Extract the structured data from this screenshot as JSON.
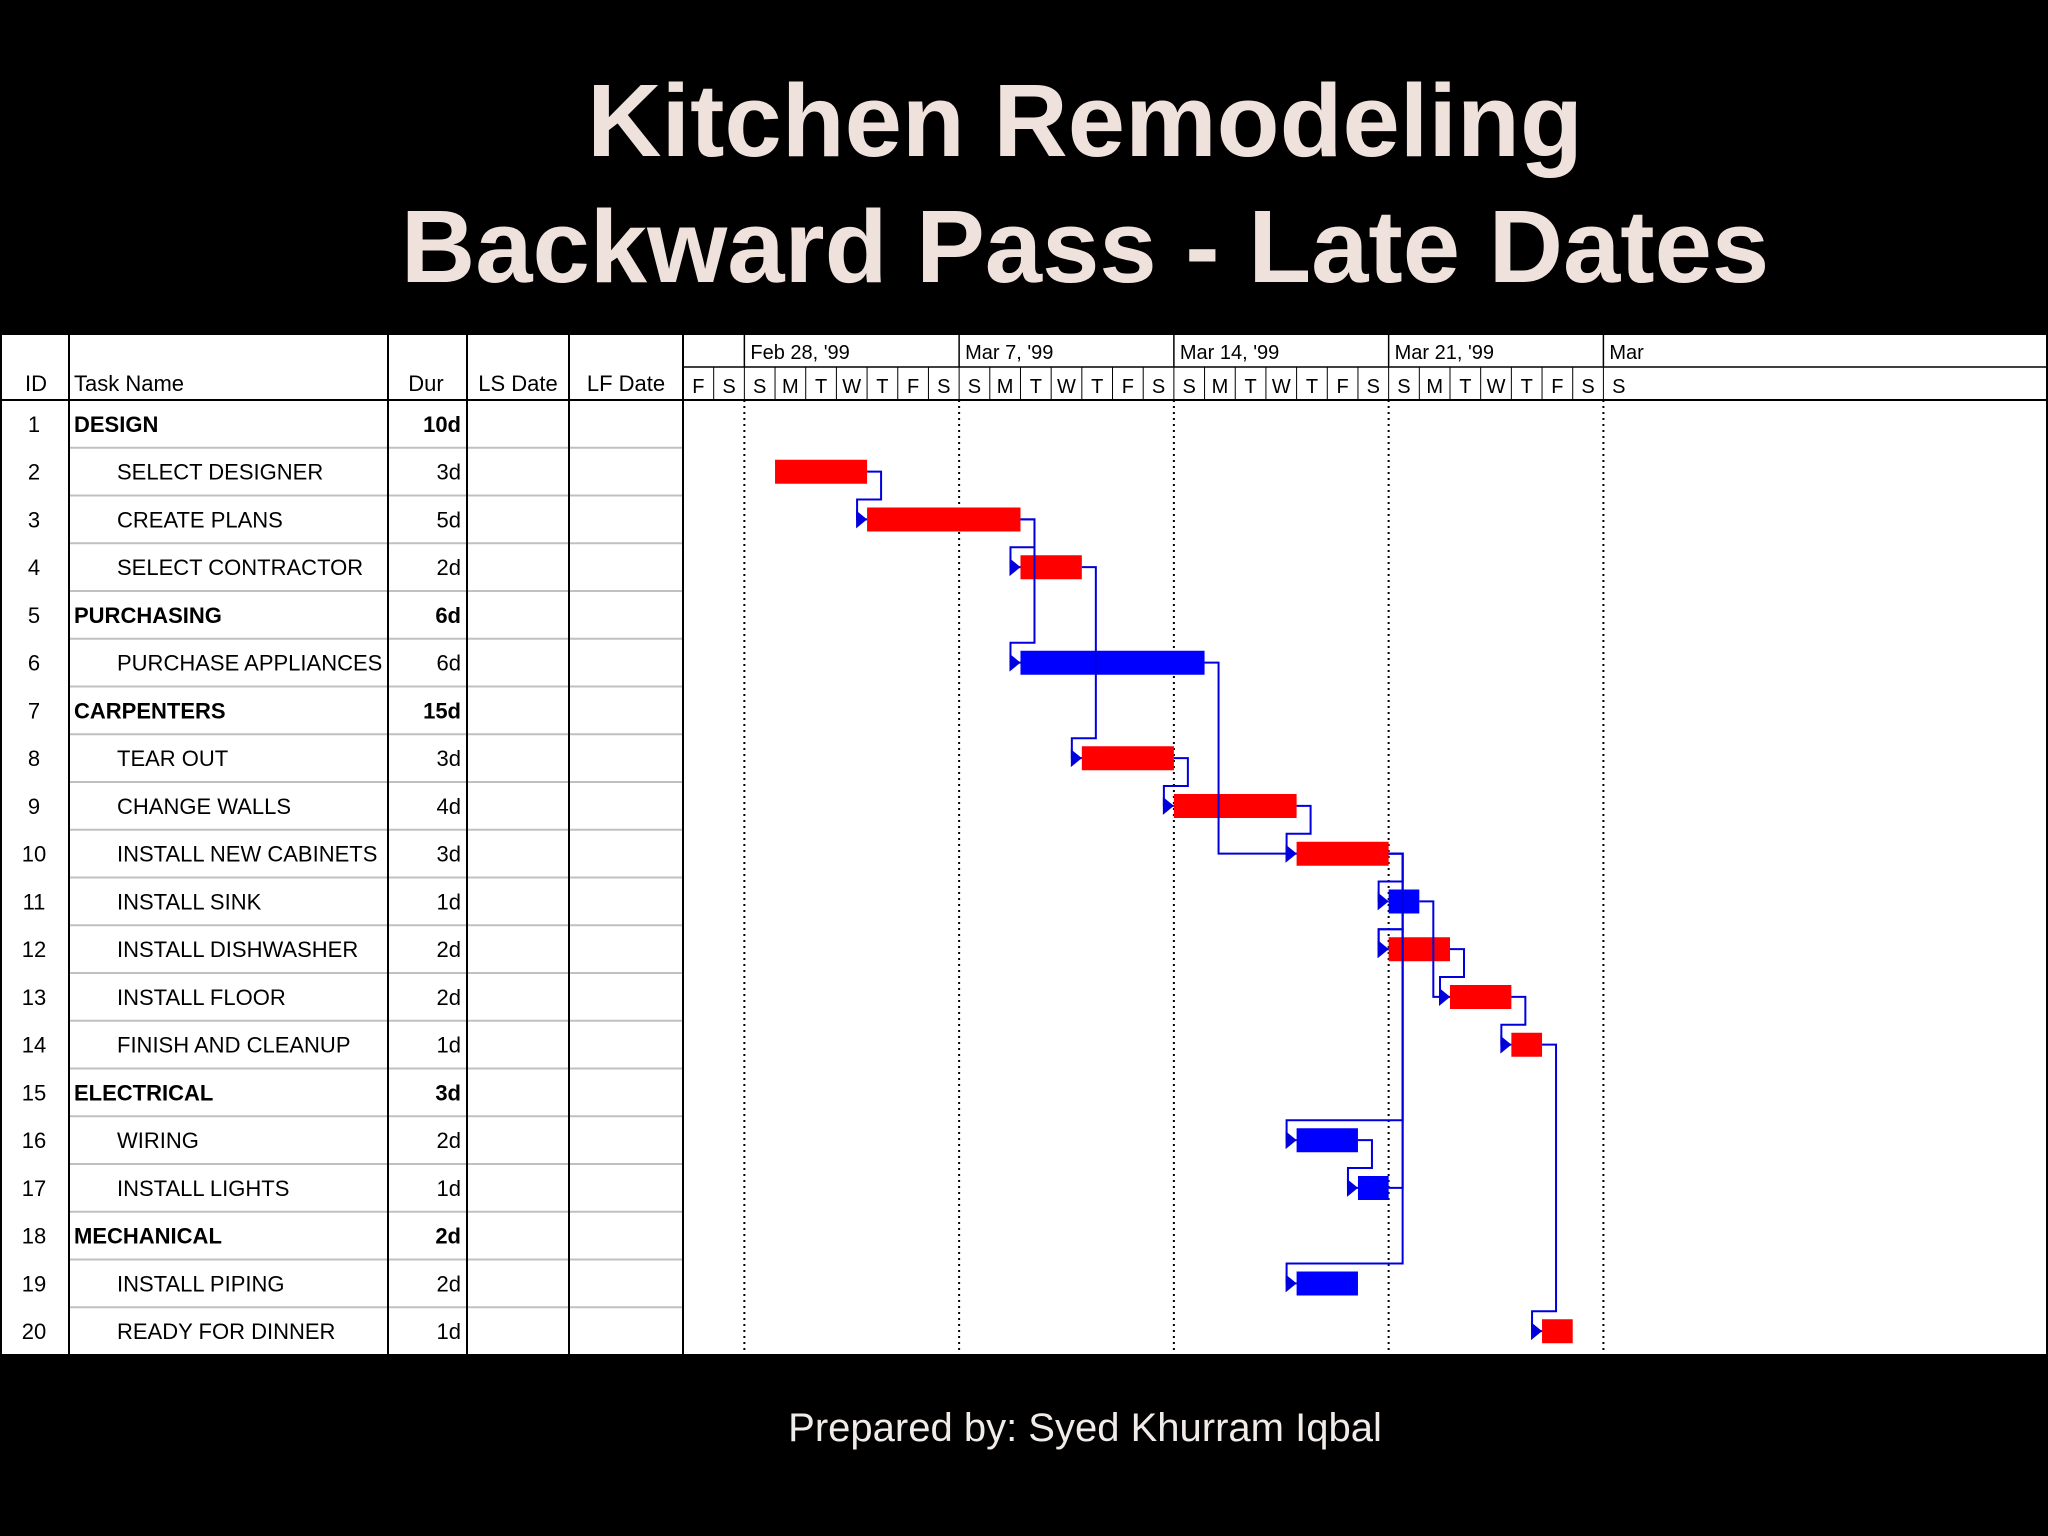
{
  "title": {
    "line1": "Kitchen Remodeling",
    "line2": "Backward Pass - Late Dates"
  },
  "footer": "Prepared by: Syed Khurram Iqbal",
  "colors": {
    "critical": "#ff0000",
    "noncritical": "#0000ff",
    "link": "#0000dd",
    "background": "#000000"
  },
  "chart_data": {
    "type": "gantt",
    "columns": [
      "ID",
      "Task Name",
      "Dur",
      "LS Date",
      "LF Date"
    ],
    "timescale": {
      "weeks": [
        "Feb 28, '99",
        "Mar 7, '99",
        "Mar 14, '99",
        "Mar 21, '99",
        "Mar"
      ],
      "days": [
        "F",
        "S",
        "S",
        "M",
        "T",
        "W",
        "T",
        "F",
        "S",
        "S",
        "M",
        "T",
        "W",
        "T",
        "F",
        "S",
        "S",
        "M",
        "T",
        "W",
        "T",
        "F",
        "S",
        "S",
        "M",
        "T",
        "W",
        "T",
        "F",
        "S",
        "S"
      ]
    },
    "tasks": [
      {
        "id": "1",
        "name": "DESIGN",
        "dur": "10d",
        "summary": true
      },
      {
        "id": "2",
        "name": "SELECT DESIGNER",
        "dur": "3d",
        "summary": false,
        "bar": [
          3,
          6
        ],
        "critical": true
      },
      {
        "id": "3",
        "name": "CREATE PLANS",
        "dur": "5d",
        "summary": false,
        "bar": [
          6,
          11
        ],
        "critical": true
      },
      {
        "id": "4",
        "name": "SELECT CONTRACTOR",
        "dur": "2d",
        "summary": false,
        "bar": [
          11,
          13
        ],
        "critical": true
      },
      {
        "id": "5",
        "name": "PURCHASING",
        "dur": "6d",
        "summary": true
      },
      {
        "id": "6",
        "name": "PURCHASE APPLIANCES",
        "dur": "6d",
        "summary": false,
        "bar": [
          11,
          17
        ],
        "critical": false
      },
      {
        "id": "7",
        "name": "CARPENTERS",
        "dur": "15d",
        "summary": true
      },
      {
        "id": "8",
        "name": "TEAR OUT",
        "dur": "3d",
        "summary": false,
        "bar": [
          13,
          16
        ],
        "critical": true
      },
      {
        "id": "9",
        "name": "CHANGE WALLS",
        "dur": "4d",
        "summary": false,
        "bar": [
          16,
          20
        ],
        "critical": true
      },
      {
        "id": "10",
        "name": "INSTALL NEW CABINETS",
        "dur": "3d",
        "summary": false,
        "bar": [
          20,
          23
        ],
        "critical": true
      },
      {
        "id": "11",
        "name": "INSTALL SINK",
        "dur": "1d",
        "summary": false,
        "bar": [
          23,
          24
        ],
        "critical": false
      },
      {
        "id": "12",
        "name": "INSTALL DISHWASHER",
        "dur": "2d",
        "summary": false,
        "bar": [
          23,
          25
        ],
        "critical": true
      },
      {
        "id": "13",
        "name": "INSTALL FLOOR",
        "dur": "2d",
        "summary": false,
        "bar": [
          25,
          27
        ],
        "critical": true
      },
      {
        "id": "14",
        "name": "FINISH AND CLEANUP",
        "dur": "1d",
        "summary": false,
        "bar": [
          27,
          28
        ],
        "critical": true
      },
      {
        "id": "15",
        "name": "ELECTRICAL",
        "dur": "3d",
        "summary": true
      },
      {
        "id": "16",
        "name": "WIRING",
        "dur": "2d",
        "summary": false,
        "bar": [
          20,
          22
        ],
        "critical": false
      },
      {
        "id": "17",
        "name": "INSTALL LIGHTS",
        "dur": "1d",
        "summary": false,
        "bar": [
          22,
          23
        ],
        "critical": false
      },
      {
        "id": "18",
        "name": "MECHANICAL",
        "dur": "2d",
        "summary": true
      },
      {
        "id": "19",
        "name": "INSTALL PIPING",
        "dur": "2d",
        "summary": false,
        "bar": [
          20,
          22
        ],
        "critical": false
      },
      {
        "id": "20",
        "name": "READY FOR DINNER",
        "dur": "1d",
        "summary": false,
        "bar": [
          28,
          29
        ],
        "critical": true
      }
    ],
    "links": [
      [
        2,
        3
      ],
      [
        3,
        4
      ],
      [
        3,
        6
      ],
      [
        4,
        8
      ],
      [
        8,
        9
      ],
      [
        6,
        10
      ],
      [
        9,
        10
      ],
      [
        10,
        11
      ],
      [
        10,
        12
      ],
      [
        11,
        13
      ],
      [
        12,
        13
      ],
      [
        13,
        14
      ],
      [
        17,
        12
      ],
      [
        10,
        16
      ],
      [
        10,
        19
      ],
      [
        16,
        17
      ],
      [
        14,
        20
      ]
    ]
  }
}
